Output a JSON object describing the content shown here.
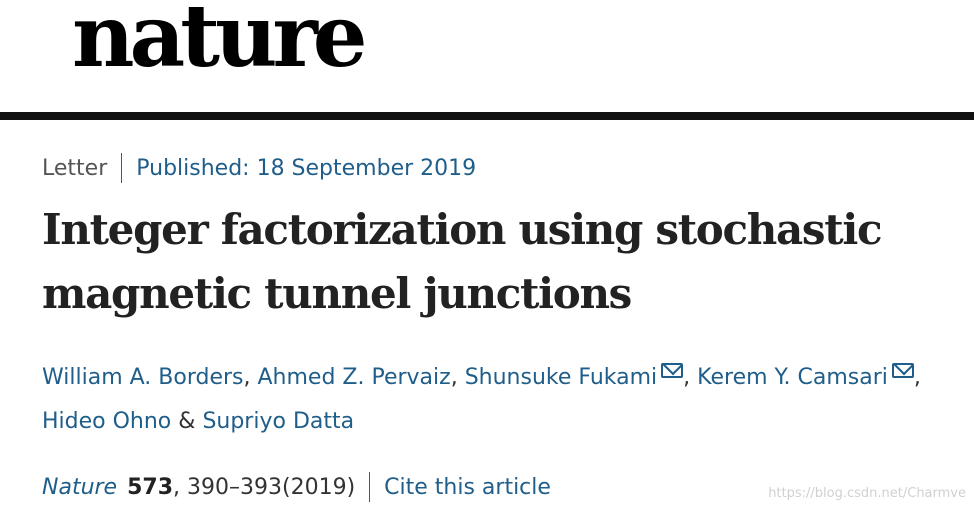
{
  "masthead": {
    "logo_text": "nature"
  },
  "article": {
    "type": "Letter",
    "published": "Published: 18 September 2019",
    "title": "Integer factorization using stochastic magnetic tunnel junctions",
    "authors": [
      {
        "name": "William A. Borders"
      },
      {
        "name": "Ahmed Z. Pervaiz"
      },
      {
        "name": "Shunsuke Fukami"
      },
      {
        "name": "Kerem Y. Camsari"
      },
      {
        "name": "Hideo Ohno"
      },
      {
        "name": "Supriyo Datta"
      }
    ],
    "author_separator": ",",
    "ampersand": "&",
    "citation": {
      "journal": "Nature",
      "volume": "573",
      "pages_year": ", 390–393(2019)",
      "cite_link": "Cite this article"
    }
  },
  "watermark": "https://blog.csdn.net/Charmve",
  "colors": {
    "link": "#1f5e8a",
    "text": "#222222",
    "rule": "#111111"
  },
  "icons": {
    "corresponding_author": "mail-icon"
  }
}
